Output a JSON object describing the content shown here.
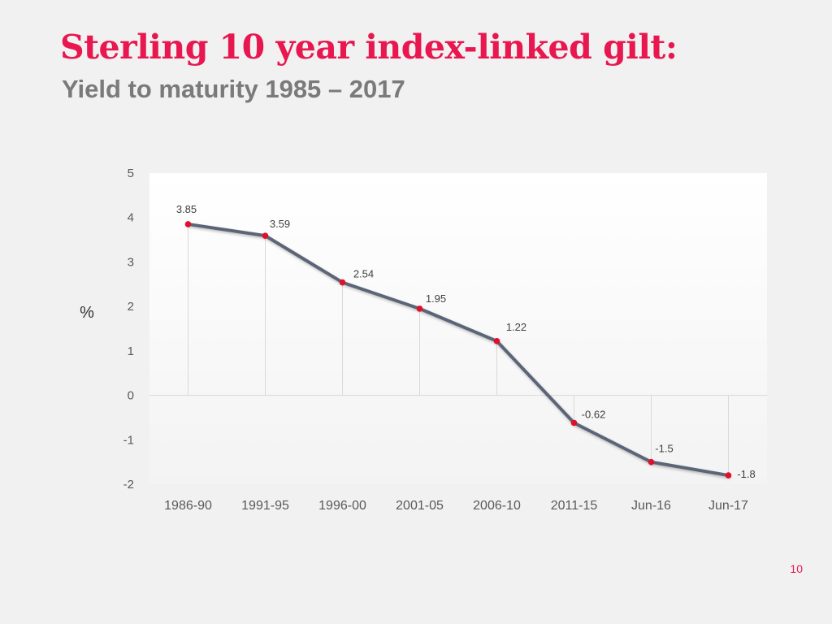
{
  "slide": {
    "title": "Sterling 10 year index-linked gilt:",
    "subtitle": "Yield to maturity 1985 – 2017",
    "page_number": "10"
  },
  "colors": {
    "title": "#e8174f",
    "line": "#5c6577",
    "marker": "#e0102a",
    "plot_bg_top": "#ffffff",
    "plot_bg_bottom": "#f3f3f3",
    "drop_lines": "#d9d9d9"
  },
  "chart_data": {
    "type": "line",
    "title": "",
    "xlabel": "",
    "ylabel": "%",
    "ylim": [
      -2,
      5
    ],
    "y_ticks": [
      5,
      4,
      3,
      2,
      1,
      0,
      -1,
      -2
    ],
    "categories": [
      "1986-90",
      "1991-95",
      "1996-00",
      "2001-05",
      "2006-10",
      "2011-15",
      "Jun-16",
      "Jun-17"
    ],
    "series": [
      {
        "name": "Yield to maturity",
        "values": [
          3.85,
          3.59,
          2.54,
          1.95,
          1.22,
          -0.62,
          -1.5,
          -1.8
        ]
      }
    ],
    "data_labels": [
      "3.85",
      "3.59",
      "2.54",
      "1.95",
      "1.22",
      "-0.62",
      "-1.5",
      "-1.8"
    ],
    "drop_lines": true,
    "grid": false,
    "legend": "none"
  }
}
